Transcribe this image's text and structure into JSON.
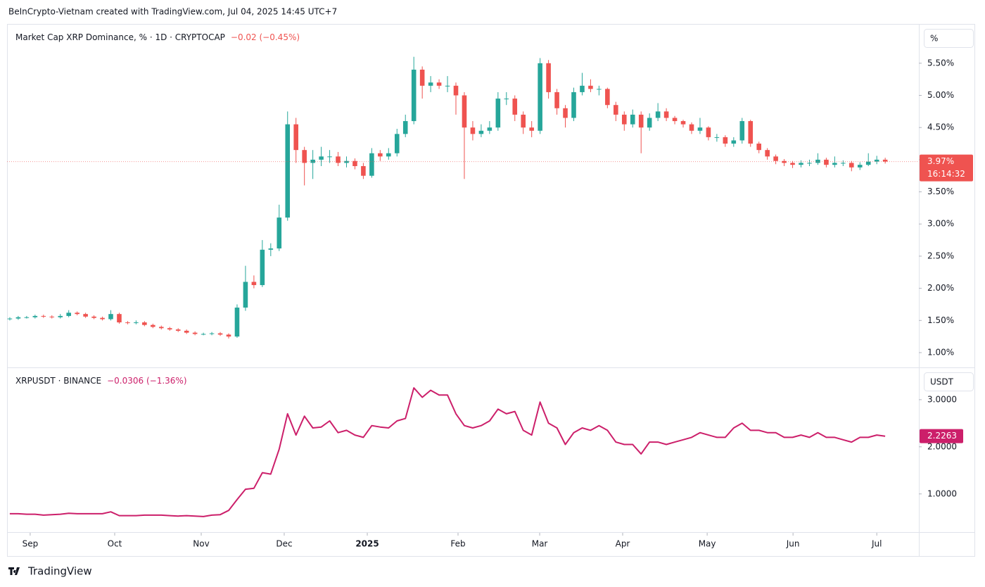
{
  "header": "BeInCrypto-Vietnam created with TradingView.com, Jul 04, 2025 14:45 UTC+7",
  "footer": "TradingView",
  "chart_data": [
    {
      "type": "candlestick",
      "title": "Market Cap XRP Dominance, % · 1D · CRYPTOCAP",
      "change_text": "−0.02 (−0.45%)",
      "unit": "%",
      "up_color": "#26a69a",
      "down_color": "#ef5350",
      "last_price": {
        "value": 3.97,
        "label": "3.97%"
      },
      "countdown": "16:14:32",
      "xlim": [
        -0.33,
        108.0
      ],
      "xticks": [
        {
          "value": 2.42,
          "label": "Sep"
        },
        {
          "value": 12.46,
          "label": "Oct"
        },
        {
          "value": 22.74,
          "label": "Nov"
        },
        {
          "value": 32.6,
          "label": "Dec"
        },
        {
          "value": 42.47,
          "label": "2025"
        },
        {
          "value": 53.25,
          "label": "Feb"
        },
        {
          "value": 62.95,
          "label": "Mar"
        },
        {
          "value": 72.81,
          "label": "Apr"
        },
        {
          "value": 82.85,
          "label": "May"
        },
        {
          "value": 93.05,
          "label": "Jun"
        },
        {
          "value": 103.0,
          "label": "Jul"
        }
      ],
      "ylim": [
        0.77,
        6.1
      ],
      "yticks": [
        {
          "value": 1,
          "label": "1.00%"
        },
        {
          "value": 1.5,
          "label": "1.50%"
        },
        {
          "value": 2,
          "label": "2.00%"
        },
        {
          "value": 2.5,
          "label": "2.50%"
        },
        {
          "value": 3,
          "label": "3.00%"
        },
        {
          "value": 3.5,
          "label": "3.50%"
        },
        {
          "value": 4,
          "label": "4.00%"
        },
        {
          "value": 4.5,
          "label": "4.50%"
        },
        {
          "value": 5,
          "label": "5.00%"
        },
        {
          "value": 5.5,
          "label": "5.50%"
        }
      ],
      "grid": false,
      "open": [
        1.52,
        1.53,
        1.55,
        1.55,
        1.57,
        1.56,
        1.55,
        1.57,
        1.62,
        1.6,
        1.56,
        1.54,
        1.52,
        1.6,
        1.47,
        1.46,
        1.47,
        1.43,
        1.4,
        1.38,
        1.36,
        1.34,
        1.31,
        1.29,
        1.29,
        1.3,
        1.28,
        1.25,
        1.7,
        2.1,
        2.05,
        2.6,
        2.62,
        3.1,
        4.55,
        4.15,
        3.95,
        4.0,
        4.05,
        4.05,
        3.95,
        3.98,
        3.9,
        3.75,
        4.1,
        4.05,
        4.1,
        4.4,
        4.6,
        5.4,
        5.15,
        5.2,
        5.15,
        5.15,
        5.0,
        4.5,
        4.4,
        4.45,
        4.5,
        4.95,
        4.95,
        4.7,
        4.5,
        4.45,
        5.5,
        5.05,
        4.8,
        4.65,
        5.05,
        5.15,
        5.1,
        5.1,
        4.85,
        4.7,
        4.55,
        4.7,
        4.5,
        4.65,
        4.75,
        4.65,
        4.6,
        4.55,
        4.45,
        4.5,
        4.35,
        4.35,
        4.25,
        4.3,
        4.6,
        4.25,
        4.15,
        4.05,
        3.98,
        3.95,
        3.92,
        3.95,
        3.95,
        4.0,
        3.92,
        3.95,
        3.95,
        3.88,
        3.92,
        3.97,
        4.0
      ],
      "high": [
        1.55,
        1.57,
        1.57,
        1.59,
        1.59,
        1.58,
        1.6,
        1.66,
        1.64,
        1.62,
        1.58,
        1.56,
        1.66,
        1.62,
        1.49,
        1.5,
        1.49,
        1.45,
        1.42,
        1.4,
        1.38,
        1.36,
        1.33,
        1.31,
        1.32,
        1.32,
        1.3,
        1.75,
        2.35,
        2.2,
        2.75,
        2.7,
        3.3,
        4.75,
        4.65,
        4.2,
        4.15,
        4.2,
        4.15,
        4.12,
        4.05,
        4.02,
        3.95,
        4.18,
        4.15,
        4.18,
        4.48,
        4.7,
        5.6,
        5.45,
        5.3,
        5.25,
        5.3,
        5.2,
        5.05,
        4.6,
        4.55,
        4.6,
        5.05,
        5.05,
        5.0,
        4.75,
        4.6,
        5.58,
        5.55,
        5.1,
        4.85,
        5.12,
        5.35,
        5.25,
        5.15,
        5.12,
        4.9,
        4.75,
        4.78,
        4.75,
        4.72,
        4.88,
        4.8,
        4.68,
        4.62,
        4.58,
        4.65,
        4.52,
        4.4,
        4.38,
        4.35,
        4.65,
        4.62,
        4.28,
        4.18,
        4.08,
        4.01,
        3.98,
        3.99,
        4.0,
        4.1,
        4.03,
        4.05,
        3.99,
        3.98,
        3.96,
        4.1,
        4.06,
        4.03
      ],
      "low": [
        1.5,
        1.51,
        1.53,
        1.53,
        1.54,
        1.53,
        1.53,
        1.55,
        1.58,
        1.54,
        1.52,
        1.5,
        1.5,
        1.45,
        1.44,
        1.44,
        1.41,
        1.38,
        1.36,
        1.34,
        1.32,
        1.29,
        1.27,
        1.27,
        1.27,
        1.26,
        1.22,
        1.23,
        1.65,
        2.0,
        2.02,
        2.5,
        2.58,
        3.05,
        3.95,
        3.6,
        3.7,
        3.9,
        3.95,
        3.9,
        3.88,
        3.85,
        3.7,
        3.72,
        3.98,
        4.0,
        4.05,
        4.35,
        4.55,
        4.95,
        5.05,
        5.1,
        5.05,
        4.7,
        3.7,
        4.3,
        4.35,
        4.4,
        4.45,
        4.85,
        4.6,
        4.4,
        4.35,
        4.4,
        4.95,
        4.7,
        4.5,
        4.6,
        5.0,
        5.05,
        5.0,
        4.8,
        4.6,
        4.45,
        4.5,
        4.1,
        4.45,
        4.6,
        4.6,
        4.55,
        4.5,
        4.4,
        4.4,
        4.3,
        4.28,
        4.2,
        4.2,
        4.25,
        4.2,
        4.1,
        4.0,
        3.93,
        3.9,
        3.87,
        3.88,
        3.9,
        3.92,
        3.88,
        3.88,
        3.9,
        3.82,
        3.84,
        3.9,
        3.93,
        3.94
      ],
      "close": [
        1.53,
        1.55,
        1.55,
        1.57,
        1.56,
        1.55,
        1.57,
        1.62,
        1.6,
        1.56,
        1.54,
        1.52,
        1.6,
        1.47,
        1.46,
        1.47,
        1.43,
        1.4,
        1.38,
        1.36,
        1.34,
        1.31,
        1.29,
        1.29,
        1.3,
        1.28,
        1.25,
        1.7,
        2.1,
        2.05,
        2.6,
        2.62,
        3.1,
        4.55,
        4.15,
        3.95,
        4.0,
        4.05,
        4.05,
        3.95,
        3.98,
        3.9,
        3.75,
        4.1,
        4.05,
        4.1,
        4.4,
        4.6,
        5.4,
        5.15,
        5.2,
        5.15,
        5.15,
        5.0,
        4.5,
        4.4,
        4.45,
        4.5,
        4.95,
        4.95,
        4.7,
        4.5,
        4.45,
        5.5,
        5.05,
        4.8,
        4.65,
        5.05,
        5.15,
        5.1,
        5.1,
        4.85,
        4.7,
        4.55,
        4.7,
        4.5,
        4.65,
        4.75,
        4.65,
        4.6,
        4.55,
        4.45,
        4.5,
        4.35,
        4.35,
        4.25,
        4.3,
        4.6,
        4.25,
        4.15,
        4.05,
        3.98,
        3.95,
        3.92,
        3.95,
        3.95,
        4.0,
        3.92,
        3.95,
        3.95,
        3.88,
        3.92,
        3.97,
        4.0,
        3.97
      ]
    },
    {
      "type": "line",
      "title": "XRPUSDT · BINANCE",
      "change_text": "−0.0306 (−1.36%)",
      "unit": "USDT",
      "color": "#cc1f6a",
      "last_price": {
        "value": 2.2263,
        "label": "2.2263"
      },
      "xlim": [
        -0.33,
        108.0
      ],
      "ylim": [
        0.19,
        3.67
      ],
      "yticks": [
        {
          "value": 1,
          "label": "1.0000"
        },
        {
          "value": 2,
          "label": "2.0000"
        },
        {
          "value": 3,
          "label": "3.0000"
        }
      ],
      "grid": false,
      "values": [
        0.58,
        0.58,
        0.57,
        0.57,
        0.55,
        0.56,
        0.57,
        0.59,
        0.58,
        0.58,
        0.58,
        0.58,
        0.62,
        0.54,
        0.54,
        0.54,
        0.55,
        0.55,
        0.55,
        0.54,
        0.53,
        0.54,
        0.53,
        0.52,
        0.55,
        0.56,
        0.65,
        0.88,
        1.1,
        1.12,
        1.45,
        1.42,
        1.95,
        2.7,
        2.25,
        2.65,
        2.4,
        2.42,
        2.55,
        2.3,
        2.35,
        2.25,
        2.2,
        2.45,
        2.42,
        2.4,
        2.55,
        2.6,
        3.25,
        3.05,
        3.2,
        3.1,
        3.1,
        2.7,
        2.45,
        2.4,
        2.45,
        2.55,
        2.8,
        2.7,
        2.75,
        2.35,
        2.25,
        2.95,
        2.5,
        2.4,
        2.05,
        2.3,
        2.4,
        2.35,
        2.45,
        2.35,
        2.1,
        2.05,
        2.05,
        1.85,
        2.1,
        2.1,
        2.05,
        2.1,
        2.15,
        2.2,
        2.3,
        2.25,
        2.2,
        2.2,
        2.4,
        2.5,
        2.35,
        2.35,
        2.3,
        2.3,
        2.2,
        2.2,
        2.25,
        2.2,
        2.3,
        2.2,
        2.2,
        2.15,
        2.1,
        2.2,
        2.2,
        2.25,
        2.2263
      ]
    }
  ]
}
